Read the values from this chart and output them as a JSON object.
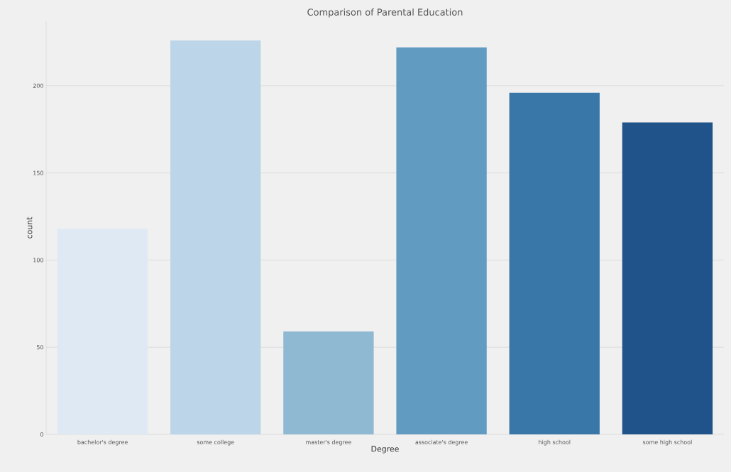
{
  "chart_data": {
    "type": "bar",
    "title": "Comparison of Parental Education",
    "xlabel": "Degree",
    "ylabel": "count",
    "categories": [
      "bachelor's degree",
      "some college",
      "master's degree",
      "associate's degree",
      "high school",
      "some high school"
    ],
    "values": [
      118,
      226,
      59,
      222,
      196,
      179
    ],
    "colors": [
      "#dfe9f4",
      "#bdd5e8",
      "#8fb8d3",
      "#629bc1",
      "#3a77a9",
      "#1f538a"
    ],
    "ylim": [
      0,
      237
    ],
    "yticks": [
      0,
      50,
      100,
      150,
      200
    ],
    "grid": "y"
  }
}
